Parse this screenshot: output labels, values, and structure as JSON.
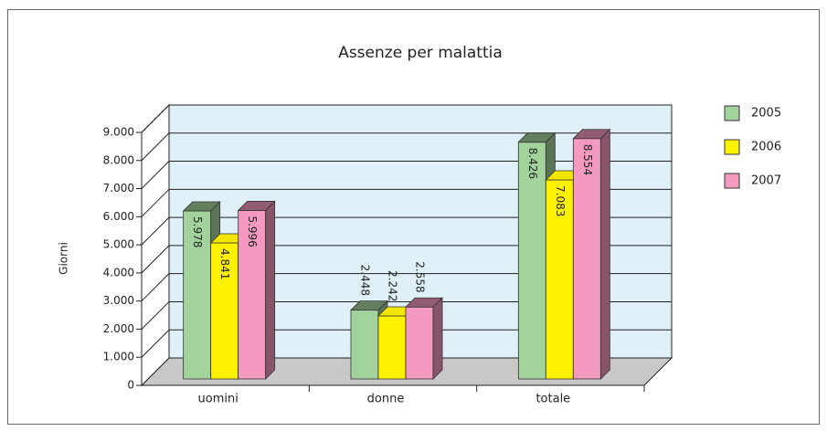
{
  "chart_data": {
    "type": "bar3d",
    "title": "Assenze per malattia",
    "y_label": "Giorni",
    "categories": [
      "uomini",
      "donne",
      "totale"
    ],
    "series": [
      {
        "name": "2005",
        "color": "#a3d39c",
        "values": [
          5978,
          2448,
          8426
        ],
        "value_labels": [
          "5.978",
          "2.448",
          "8.426"
        ]
      },
      {
        "name": "2006",
        "color": "#fff200",
        "values": [
          4841,
          2242,
          7083
        ],
        "value_labels": [
          "4.841",
          "2.242",
          "7.083"
        ]
      },
      {
        "name": "2007",
        "color": "#f49ac1",
        "values": [
          5996,
          2558,
          8554
        ],
        "value_labels": [
          "5.996",
          "2.558",
          "8.554"
        ]
      }
    ],
    "ylim": [
      0,
      9000
    ],
    "yticks": [
      0,
      {
        "value": 1000,
        "label": "1.000"
      },
      {
        "value": 2000,
        "label": "2.000"
      },
      {
        "value": 3000,
        "label": "3.000"
      },
      {
        "value": 4000,
        "label": "4.000"
      },
      {
        "value": 5000,
        "label": "5.000"
      },
      {
        "value": 6000,
        "label": "6.000"
      },
      {
        "value": 7000,
        "label": "7.000"
      },
      {
        "value": 8000,
        "label": "8.000"
      },
      {
        "value": 9000,
        "label": "9.000"
      }
    ],
    "grid": true,
    "legend": "right"
  }
}
